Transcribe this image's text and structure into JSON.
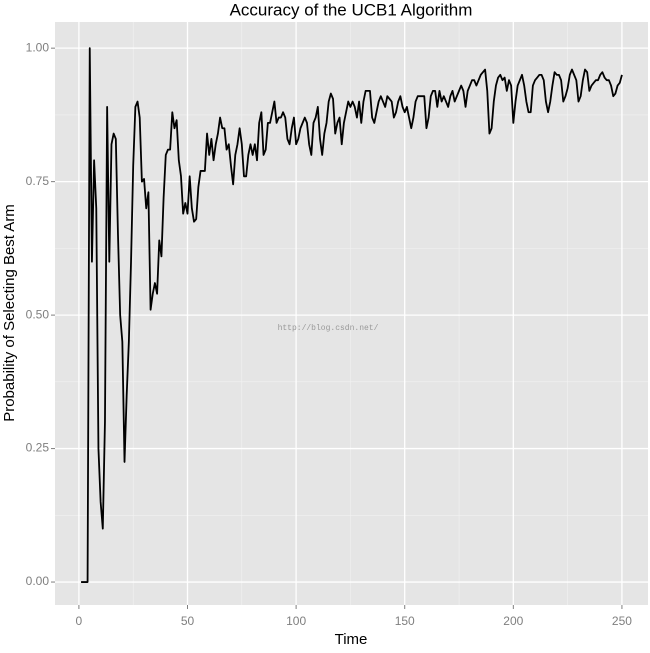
{
  "chart_data": {
    "type": "line",
    "title": "Accuracy of the UCB1 Algorithm",
    "x_label": "Time",
    "y_label": "Probability of Selecting Best Arm",
    "annotation": "http://blog.csdn.net/",
    "color": "#000000",
    "grid": true,
    "xlim": [
      -11,
      262
    ],
    "ylim": [
      -0.043,
      1.049
    ],
    "xticks": [
      0,
      50,
      100,
      150,
      200,
      250
    ],
    "yticks": [
      {
        "value": 0,
        "label": "0.00"
      },
      {
        "value": 0.25,
        "label": "0.25"
      },
      {
        "value": 0.5,
        "label": "0.50"
      },
      {
        "value": 0.75,
        "label": "0.75"
      },
      {
        "value": 1,
        "label": "1.00"
      }
    ],
    "x": [
      1,
      2,
      3,
      4,
      5,
      6,
      7,
      8,
      9,
      10,
      11,
      12,
      13,
      14,
      15,
      16,
      17,
      18,
      19,
      20,
      21,
      22,
      23,
      24,
      25,
      26,
      27,
      28,
      29,
      30,
      31,
      32,
      33,
      34,
      35,
      36,
      37,
      38,
      39,
      40,
      41,
      42,
      43,
      44,
      45,
      46,
      47,
      48,
      49,
      50,
      51,
      52,
      53,
      54,
      55,
      56,
      57,
      58,
      59,
      60,
      61,
      62,
      63,
      64,
      65,
      66,
      67,
      68,
      69,
      70,
      71,
      72,
      73,
      74,
      75,
      76,
      77,
      78,
      79,
      80,
      81,
      82,
      83,
      84,
      85,
      86,
      87,
      88,
      89,
      90,
      91,
      92,
      93,
      94,
      95,
      96,
      97,
      98,
      99,
      100,
      101,
      102,
      103,
      104,
      105,
      106,
      107,
      108,
      109,
      110,
      111,
      112,
      113,
      114,
      115,
      116,
      117,
      118,
      119,
      120,
      121,
      122,
      123,
      124,
      125,
      126,
      127,
      128,
      129,
      130,
      131,
      132,
      133,
      134,
      135,
      136,
      137,
      138,
      139,
      140,
      141,
      142,
      143,
      144,
      145,
      146,
      147,
      148,
      149,
      150,
      151,
      152,
      153,
      154,
      155,
      156,
      157,
      158,
      159,
      160,
      161,
      162,
      163,
      164,
      165,
      166,
      167,
      168,
      169,
      170,
      171,
      172,
      173,
      174,
      175,
      176,
      177,
      178,
      179,
      180,
      181,
      182,
      183,
      184,
      185,
      186,
      187,
      188,
      189,
      190,
      191,
      192,
      193,
      194,
      195,
      196,
      197,
      198,
      199,
      200,
      201,
      202,
      203,
      204,
      205,
      206,
      207,
      208,
      209,
      210,
      211,
      212,
      213,
      214,
      215,
      216,
      217,
      218,
      219,
      220,
      221,
      222,
      223,
      224,
      225,
      226,
      227,
      228,
      229,
      230,
      231,
      232,
      233,
      234,
      235,
      236,
      237,
      238,
      239,
      240,
      241,
      242,
      243,
      244,
      245,
      246,
      247,
      248,
      249,
      250
    ],
    "values": [
      0,
      0,
      0,
      0,
      1.0,
      0.6,
      0.79,
      0.7,
      0.25,
      0.15,
      0.1,
      0.3,
      0.89,
      0.6,
      0.82,
      0.84,
      0.83,
      0.65,
      0.5,
      0.45,
      0.225,
      0.35,
      0.45,
      0.6,
      0.78,
      0.89,
      0.9,
      0.87,
      0.75,
      0.755,
      0.7,
      0.73,
      0.51,
      0.54,
      0.56,
      0.54,
      0.64,
      0.61,
      0.72,
      0.8,
      0.81,
      0.81,
      0.88,
      0.85,
      0.865,
      0.79,
      0.76,
      0.69,
      0.71,
      0.69,
      0.76,
      0.7,
      0.675,
      0.68,
      0.74,
      0.77,
      0.77,
      0.77,
      0.84,
      0.8,
      0.83,
      0.79,
      0.82,
      0.84,
      0.87,
      0.85,
      0.85,
      0.81,
      0.82,
      0.78,
      0.745,
      0.8,
      0.82,
      0.85,
      0.82,
      0.76,
      0.76,
      0.8,
      0.82,
      0.8,
      0.82,
      0.79,
      0.86,
      0.88,
      0.8,
      0.81,
      0.86,
      0.86,
      0.88,
      0.9,
      0.86,
      0.87,
      0.87,
      0.88,
      0.87,
      0.83,
      0.82,
      0.85,
      0.87,
      0.82,
      0.83,
      0.85,
      0.86,
      0.87,
      0.86,
      0.82,
      0.8,
      0.86,
      0.87,
      0.89,
      0.83,
      0.8,
      0.84,
      0.86,
      0.9,
      0.915,
      0.905,
      0.84,
      0.86,
      0.87,
      0.82,
      0.86,
      0.88,
      0.9,
      0.89,
      0.9,
      0.89,
      0.87,
      0.9,
      0.86,
      0.9,
      0.92,
      0.92,
      0.92,
      0.87,
      0.86,
      0.88,
      0.9,
      0.91,
      0.9,
      0.89,
      0.91,
      0.905,
      0.9,
      0.87,
      0.88,
      0.9,
      0.91,
      0.89,
      0.88,
      0.89,
      0.87,
      0.85,
      0.87,
      0.9,
      0.91,
      0.91,
      0.91,
      0.91,
      0.85,
      0.87,
      0.91,
      0.92,
      0.92,
      0.89,
      0.92,
      0.9,
      0.91,
      0.9,
      0.89,
      0.91,
      0.92,
      0.9,
      0.91,
      0.92,
      0.93,
      0.92,
      0.89,
      0.92,
      0.93,
      0.94,
      0.94,
      0.93,
      0.94,
      0.95,
      0.955,
      0.96,
      0.92,
      0.84,
      0.85,
      0.9,
      0.93,
      0.945,
      0.95,
      0.94,
      0.945,
      0.92,
      0.94,
      0.93,
      0.86,
      0.9,
      0.93,
      0.94,
      0.95,
      0.93,
      0.9,
      0.88,
      0.88,
      0.93,
      0.94,
      0.945,
      0.95,
      0.95,
      0.94,
      0.9,
      0.88,
      0.9,
      0.93,
      0.955,
      0.95,
      0.95,
      0.94,
      0.9,
      0.91,
      0.925,
      0.95,
      0.96,
      0.95,
      0.94,
      0.9,
      0.91,
      0.94,
      0.96,
      0.955,
      0.92,
      0.93,
      0.935,
      0.94,
      0.94,
      0.95,
      0.955,
      0.945,
      0.94,
      0.94,
      0.93,
      0.91,
      0.915,
      0.93,
      0.935,
      0.95
    ]
  }
}
